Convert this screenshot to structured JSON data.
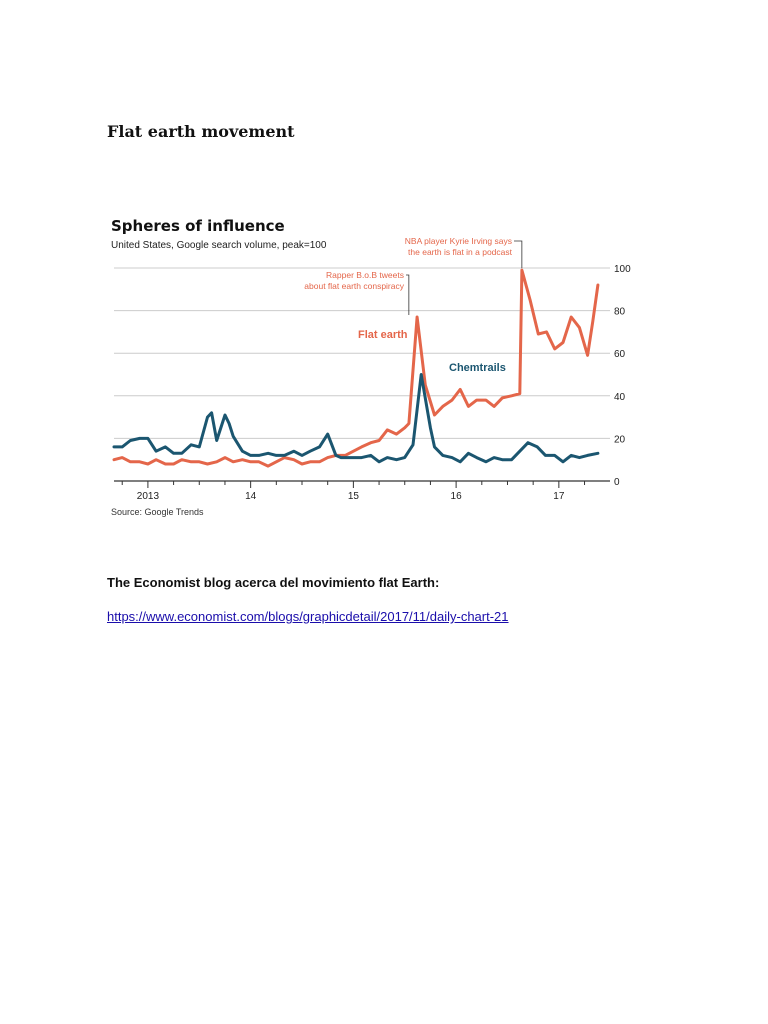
{
  "document": {
    "heading": "Flat earth movement",
    "caption": "The Economist blog acerca del movimiento flat Earth:",
    "link_text": "https://www.economist.com/blogs/graphicdetail/2017/11/daily-chart-21",
    "link_href": "https://www.economist.com/blogs/graphicdetail/2017/11/daily-chart-21"
  },
  "chart_data": {
    "type": "line",
    "title": "Spheres of influence",
    "subtitle": "United States, Google search volume, peak=100",
    "source": "Source: Google Trends",
    "xlim": [
      2012.67,
      2017.42
    ],
    "ylim": [
      0,
      100
    ],
    "y_ticks": [
      0,
      20,
      40,
      60,
      80,
      100
    ],
    "x_ticks": [
      {
        "value": 2013.0,
        "label": "2013"
      },
      {
        "value": 2014.0,
        "label": "14"
      },
      {
        "value": 2015.0,
        "label": "15"
      },
      {
        "value": 2016.0,
        "label": "16"
      },
      {
        "value": 2017.0,
        "label": "17"
      }
    ],
    "grid": true,
    "colors": {
      "flat_earth": "#e4664a",
      "chemtrails": "#1b5670",
      "grid": "#cccccc",
      "axis": "#333333"
    },
    "series": [
      {
        "name": "Flat earth",
        "key": "flat_earth",
        "x": [
          2012.67,
          2012.75,
          2012.83,
          2012.92,
          2013.0,
          2013.08,
          2013.17,
          2013.25,
          2013.33,
          2013.42,
          2013.5,
          2013.58,
          2013.67,
          2013.75,
          2013.83,
          2013.92,
          2014.0,
          2014.08,
          2014.17,
          2014.25,
          2014.33,
          2014.42,
          2014.5,
          2014.58,
          2014.67,
          2014.75,
          2014.83,
          2014.92,
          2015.0,
          2015.08,
          2015.17,
          2015.25,
          2015.33,
          2015.42,
          2015.5,
          2015.54,
          2015.62,
          2015.7,
          2015.79,
          2015.87,
          2015.96,
          2016.04,
          2016.12,
          2016.2,
          2016.29,
          2016.37,
          2016.45,
          2016.54,
          2016.62,
          2016.64,
          2016.72,
          2016.8,
          2016.88,
          2016.96,
          2017.04,
          2017.12,
          2017.2,
          2017.28,
          2017.33,
          2017.38
        ],
        "values": [
          10,
          11,
          9,
          9,
          8,
          10,
          8,
          8,
          10,
          9,
          9,
          8,
          9,
          11,
          9,
          10,
          9,
          9,
          7,
          9,
          11,
          10,
          8,
          9,
          9,
          11,
          12,
          12,
          14,
          16,
          18,
          19,
          24,
          22,
          25,
          27,
          77,
          45,
          31,
          35,
          38,
          43,
          35,
          38,
          38,
          35,
          39,
          40,
          41,
          99,
          85,
          69,
          70,
          62,
          65,
          77,
          72,
          59,
          75,
          92
        ]
      },
      {
        "name": "Chemtrails",
        "key": "chemtrails",
        "x": [
          2012.67,
          2012.75,
          2012.83,
          2012.92,
          2013.0,
          2013.08,
          2013.17,
          2013.25,
          2013.33,
          2013.42,
          2013.5,
          2013.58,
          2013.62,
          2013.67,
          2013.75,
          2013.79,
          2013.83,
          2013.92,
          2014.0,
          2014.08,
          2014.17,
          2014.25,
          2014.33,
          2014.42,
          2014.5,
          2014.58,
          2014.67,
          2014.75,
          2014.83,
          2014.88,
          2014.92,
          2015.0,
          2015.08,
          2015.17,
          2015.25,
          2015.33,
          2015.42,
          2015.5,
          2015.58,
          2015.66,
          2015.75,
          2015.79,
          2015.87,
          2015.96,
          2016.04,
          2016.12,
          2016.2,
          2016.29,
          2016.37,
          2016.45,
          2016.54,
          2016.62,
          2016.7,
          2016.79,
          2016.87,
          2016.96,
          2017.04,
          2017.12,
          2017.2,
          2017.28,
          2017.38
        ],
        "values": [
          16,
          16,
          19,
          20,
          20,
          14,
          16,
          13,
          13,
          17,
          16,
          30,
          32,
          19,
          31,
          27,
          21,
          14,
          12,
          12,
          13,
          12,
          12,
          14,
          12,
          14,
          16,
          22,
          12,
          11,
          11,
          11,
          11,
          12,
          9,
          11,
          10,
          11,
          17,
          50,
          25,
          16,
          12,
          11,
          9,
          13,
          11,
          9,
          11,
          10,
          10,
          14,
          18,
          16,
          12,
          12,
          9,
          12,
          11,
          12,
          13
        ]
      }
    ],
    "labels": {
      "flat_earth": "Flat earth",
      "chemtrails": "Chemtrails"
    },
    "annotations": [
      {
        "lines": [
          "Rapper B.o.B tweets",
          "about flat earth conspiracy"
        ],
        "x": 2015.54,
        "y": 77
      },
      {
        "lines": [
          "NBA player Kyrie Irving says",
          "the earth is flat in a podcast"
        ],
        "x": 2016.64,
        "y": 99
      }
    ]
  }
}
